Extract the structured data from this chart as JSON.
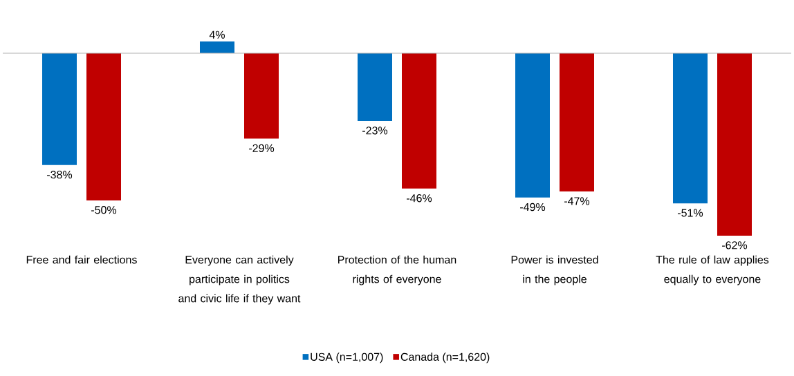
{
  "chart_data": {
    "type": "bar",
    "categories": [
      "Free and fair elections",
      "Everyone can actively participate in politics and civic life if they want",
      "Protection of the human rights of everyone",
      "Power is invested in the people",
      "The rule of law applies equally to everyone"
    ],
    "series": [
      {
        "name": "USA (n=1,007)",
        "color": "#0070c0",
        "values": [
          -38,
          4,
          -23,
          -49,
          -51
        ],
        "value_labels": [
          "-38%",
          "4%",
          "-23%",
          "-49%",
          "-51%"
        ]
      },
      {
        "name": "Canada (n=1,620)",
        "color": "#c00000",
        "values": [
          -50,
          -29,
          -46,
          -47,
          -62
        ],
        "value_labels": [
          "-50%",
          "-29%",
          "-46%",
          "-47%",
          "-62%"
        ]
      }
    ],
    "legend": "bottom",
    "tick_labels": "x"
  }
}
